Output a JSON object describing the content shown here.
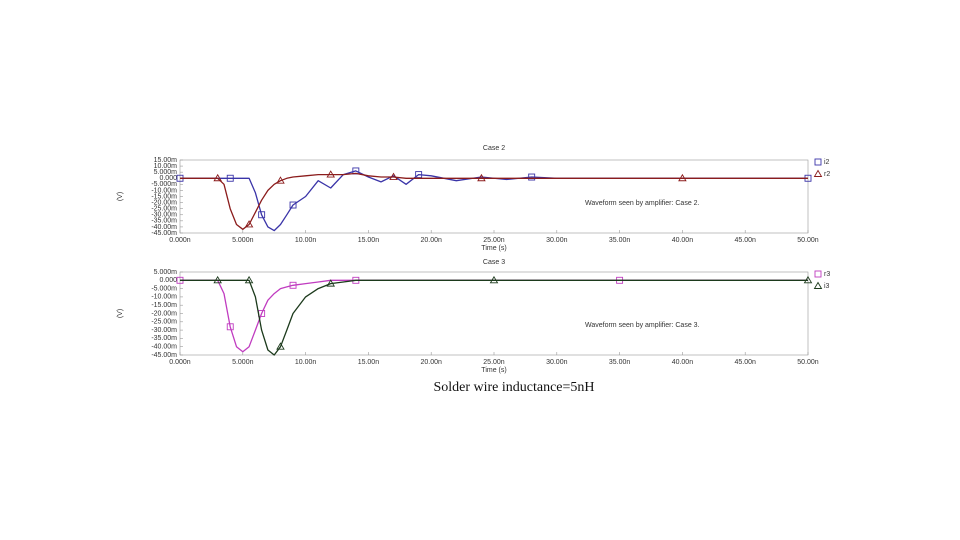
{
  "chart_data": [
    {
      "type": "line",
      "title": "Case 2",
      "y_label": "(V)",
      "x_label": "Time (s)",
      "annotation": "Waveform seen by amplifier: Case 2.",
      "x": [
        0,
        1e-09,
        2e-09,
        3e-09,
        3.5e-09,
        4e-09,
        4.5e-09,
        5e-09,
        5.5e-09,
        6e-09,
        6.5e-09,
        7e-09,
        7.5e-09,
        8e-09,
        8.5e-09,
        9e-09,
        1e-08,
        1.1e-08,
        1.2e-08,
        1.3e-08,
        1.4e-08,
        1.5e-08,
        1.6e-08,
        1.7e-08,
        1.8e-08,
        1.9e-08,
        2e-08,
        2.2e-08,
        2.4e-08,
        2.6e-08,
        2.8e-08,
        3e-08,
        3.5e-08,
        4e-08,
        4.5e-08,
        5e-08
      ],
      "series": [
        {
          "name": "i2",
          "color": "#3a34a8",
          "marker": "square",
          "values": [
            0,
            0,
            0,
            0,
            0,
            0,
            0,
            0,
            0,
            -0.012,
            -0.03,
            -0.04,
            -0.043,
            -0.038,
            -0.03,
            -0.022,
            -0.015,
            -0.002,
            -0.008,
            0.003,
            0.006,
            0.001,
            -0.003,
            0.002,
            -0.005,
            0.003,
            0.002,
            -0.002,
            0.001,
            -0.001,
            0.001,
            0,
            0,
            0,
            0,
            0
          ]
        },
        {
          "name": "r2",
          "color": "#8b1c1c",
          "marker": "triangle",
          "values": [
            0,
            0,
            0,
            0,
            -0.005,
            -0.025,
            -0.038,
            -0.042,
            -0.038,
            -0.028,
            -0.018,
            -0.01,
            -0.005,
            -0.002,
            0,
            0.001,
            0.002,
            0.003,
            0.003,
            0.003,
            0.004,
            0.002,
            0.001,
            0.001,
            0,
            0,
            0,
            0,
            0,
            0,
            0,
            0,
            0,
            0,
            0,
            0
          ]
        }
      ],
      "xlim": [
        0,
        5e-08
      ],
      "ylim": [
        -0.045,
        0.015
      ],
      "xticks": [
        {
          "value": 0,
          "label": "0.000n"
        },
        {
          "value": 5e-09,
          "label": "5.000n"
        },
        {
          "value": 1e-08,
          "label": "10.00n"
        },
        {
          "value": 1.5e-08,
          "label": "15.00n"
        },
        {
          "value": 2e-08,
          "label": "20.00n"
        },
        {
          "value": 2.5e-08,
          "label": "25.00n"
        },
        {
          "value": 3e-08,
          "label": "30.00n"
        },
        {
          "value": 3.5e-08,
          "label": "35.00n"
        },
        {
          "value": 4e-08,
          "label": "40.00n"
        },
        {
          "value": 4.5e-08,
          "label": "45.00n"
        },
        {
          "value": 5e-08,
          "label": "50.00n"
        }
      ],
      "yticks": [
        {
          "value": 0.015,
          "label": "15.00m"
        },
        {
          "value": 0.01,
          "label": "10.00m"
        },
        {
          "value": 0.005,
          "label": "5.000m"
        },
        {
          "value": 0,
          "label": "0.000"
        },
        {
          "value": -0.005,
          "label": "-5.000m"
        },
        {
          "value": -0.01,
          "label": "-10.00m"
        },
        {
          "value": -0.015,
          "label": "-15.00m"
        },
        {
          "value": -0.02,
          "label": "-20.00m"
        },
        {
          "value": -0.025,
          "label": "-25.00m"
        },
        {
          "value": -0.03,
          "label": "-30.00m"
        },
        {
          "value": -0.035,
          "label": "-35.00m"
        },
        {
          "value": -0.04,
          "label": "-40.00m"
        },
        {
          "value": -0.045,
          "label": "-45.00m"
        }
      ]
    },
    {
      "type": "line",
      "title": "Case 3",
      "y_label": "(V)",
      "x_label": "Time (s)",
      "annotation": "Waveform seen by amplifier: Case 3.",
      "x": [
        0,
        1e-09,
        2e-09,
        3e-09,
        3.5e-09,
        4e-09,
        4.5e-09,
        5e-09,
        5.5e-09,
        6e-09,
        6.5e-09,
        7e-09,
        7.5e-09,
        8e-09,
        8.5e-09,
        9e-09,
        1e-08,
        1.1e-08,
        1.2e-08,
        1.3e-08,
        1.4e-08,
        1.5e-08,
        2e-08,
        2.5e-08,
        3e-08,
        3.5e-08,
        4e-08,
        4.5e-08,
        5e-08
      ],
      "series": [
        {
          "name": "r3",
          "color": "#c03cc0",
          "marker": "square",
          "values": [
            0,
            0,
            0,
            0,
            -0.008,
            -0.028,
            -0.04,
            -0.043,
            -0.04,
            -0.03,
            -0.02,
            -0.012,
            -0.008,
            -0.005,
            -0.004,
            -0.003,
            -0.002,
            -0.001,
            0,
            0,
            0,
            0,
            0,
            0,
            0,
            0,
            0,
            0,
            0
          ]
        },
        {
          "name": "i3",
          "color": "#1c3a1c",
          "marker": "triangle",
          "values": [
            0,
            0,
            0,
            0,
            0,
            0,
            0,
            0,
            0,
            -0.01,
            -0.03,
            -0.042,
            -0.045,
            -0.04,
            -0.03,
            -0.02,
            -0.01,
            -0.005,
            -0.002,
            -0.001,
            0,
            0,
            0,
            0,
            0,
            0,
            0,
            0,
            0
          ]
        }
      ],
      "xlim": [
        0,
        5e-08
      ],
      "ylim": [
        -0.045,
        0.005
      ],
      "xticks": [
        {
          "value": 0,
          "label": "0.000n"
        },
        {
          "value": 5e-09,
          "label": "5.000n"
        },
        {
          "value": 1e-08,
          "label": "10.00n"
        },
        {
          "value": 1.5e-08,
          "label": "15.00n"
        },
        {
          "value": 2e-08,
          "label": "20.00n"
        },
        {
          "value": 2.5e-08,
          "label": "25.00n"
        },
        {
          "value": 3e-08,
          "label": "30.00n"
        },
        {
          "value": 3.5e-08,
          "label": "35.00n"
        },
        {
          "value": 4e-08,
          "label": "40.00n"
        },
        {
          "value": 4.5e-08,
          "label": "45.00n"
        },
        {
          "value": 5e-08,
          "label": "50.00n"
        }
      ],
      "yticks": [
        {
          "value": 0.005,
          "label": "5.000m"
        },
        {
          "value": 0,
          "label": "0.000"
        },
        {
          "value": -0.005,
          "label": "-5.000m"
        },
        {
          "value": -0.01,
          "label": "-10.00m"
        },
        {
          "value": -0.015,
          "label": "-15.00m"
        },
        {
          "value": -0.02,
          "label": "-20.00m"
        },
        {
          "value": -0.025,
          "label": "-25.00m"
        },
        {
          "value": -0.03,
          "label": "-30.00m"
        },
        {
          "value": -0.035,
          "label": "-35.00m"
        },
        {
          "value": -0.04,
          "label": "-40.00m"
        },
        {
          "value": -0.045,
          "label": "-45.00m"
        }
      ]
    }
  ],
  "caption": "Solder wire inductance=5nH"
}
